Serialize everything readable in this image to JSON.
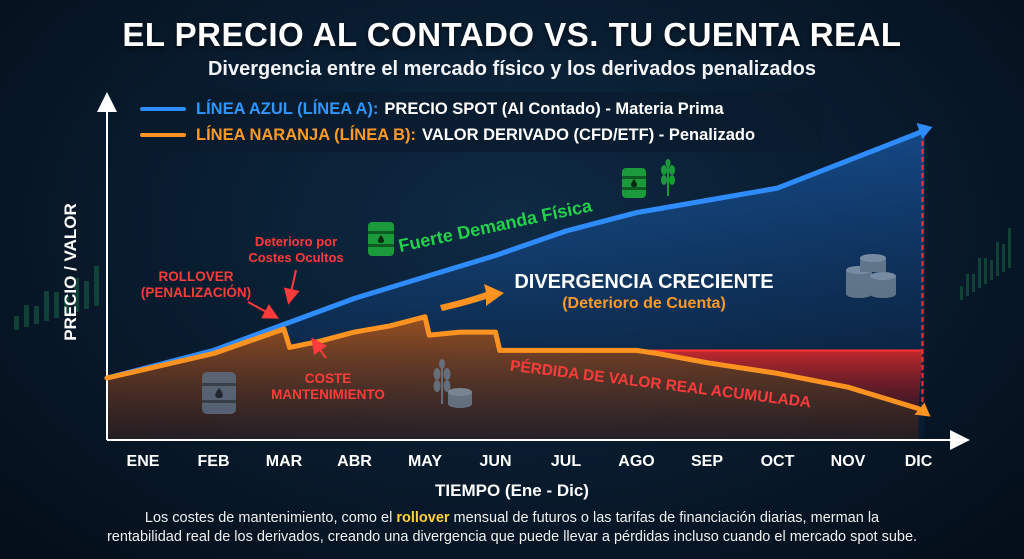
{
  "title": "EL PRECIO AL CONTADO VS. TU CUENTA REAL",
  "subtitle": "Divergencia entre el mercado físico y los derivados penalizados",
  "legend": {
    "blue_highlight": "LÍNEA AZUL (LÍNEA A):",
    "blue_text": "PRECIO SPOT (Al Contado) - Materia Prima",
    "orange_highlight": "LÍNEA NARANJA (LÍNEA B):",
    "orange_text": "VALOR DERIVADO (CFD/ETF) - Penalizado"
  },
  "annotations": {
    "demand": "Fuerte Demanda Física",
    "deterioro_line1": "Deterioro por",
    "deterioro_line2": "Costes Ocultos",
    "rollover_line1": "ROLLOVER",
    "rollover_line2": "(PENALIZACIÓN)",
    "coste_line1": "COSTE",
    "coste_line2": "MANTENIMIENTO",
    "divergencia_line1": "DIVERGENCIA CRECIENTE",
    "divergencia_line2": "(Deterioro de Cuenta)",
    "perdida": "PÉRDIDA DE VALOR REAL ACUMULADA"
  },
  "caption": {
    "part1": "Los costes de mantenimiento, como el ",
    "highlight": "rollover",
    "part2": " mensual de futuros o las tarifas de financiación diarias, merman la",
    "line2": "rentabilidad real de los derivados, creando una divergencia que puede llevar a pérdidas incluso cuando el mercado spot sube."
  },
  "colors": {
    "spot": "#2f8cff",
    "derivative": "#ff9321",
    "loss": "#d62a2a",
    "demand": "#22d24a",
    "divergence_sub": "#ff9a2a"
  },
  "chart_data": {
    "type": "line",
    "categories": [
      "ENE",
      "FEB",
      "MAR",
      "ABR",
      "MAY",
      "JUN",
      "JUL",
      "AGO",
      "SEP",
      "OCT",
      "NOV",
      "DIC"
    ],
    "xlabel": "TIEMPO (Ene - Dic)",
    "ylabel": "PRECIO / VALOR",
    "ylim": [
      0,
      100
    ],
    "grid": false,
    "legend_position": "top-left",
    "series": [
      {
        "name": "LÍNEA AZUL (LÍNEA A): PRECIO SPOT (Al Contado) - Materia Prima",
        "points": [
          [
            0,
            20
          ],
          [
            1,
            29
          ],
          [
            2,
            37.5
          ],
          [
            3,
            46
          ],
          [
            4,
            53
          ],
          [
            5,
            60
          ],
          [
            6,
            68
          ],
          [
            7,
            74
          ],
          [
            8,
            78
          ],
          [
            9,
            82
          ],
          [
            10,
            91
          ],
          [
            11,
            100
          ]
        ]
      },
      {
        "name": "LÍNEA NARANJA (LÍNEA B): VALOR DERIVADO (CFD/ETF) - Penalizado",
        "points": [
          [
            0,
            20
          ],
          [
            1,
            28
          ],
          [
            2,
            36
          ],
          [
            2.08,
            30
          ],
          [
            2.5,
            32
          ],
          [
            3,
            35
          ],
          [
            3.5,
            37
          ],
          [
            4,
            40
          ],
          [
            4.06,
            34
          ],
          [
            4.5,
            35
          ],
          [
            5,
            35
          ],
          [
            5.06,
            29
          ],
          [
            5.5,
            29
          ],
          [
            6,
            29
          ],
          [
            7,
            29
          ],
          [
            7.3,
            28
          ],
          [
            8,
            25
          ],
          [
            9,
            21.5
          ],
          [
            10,
            17
          ],
          [
            11,
            10
          ]
        ]
      }
    ],
    "loss_band": {
      "x_start": 7.0,
      "x_end": 11,
      "y_top": 29
    }
  }
}
